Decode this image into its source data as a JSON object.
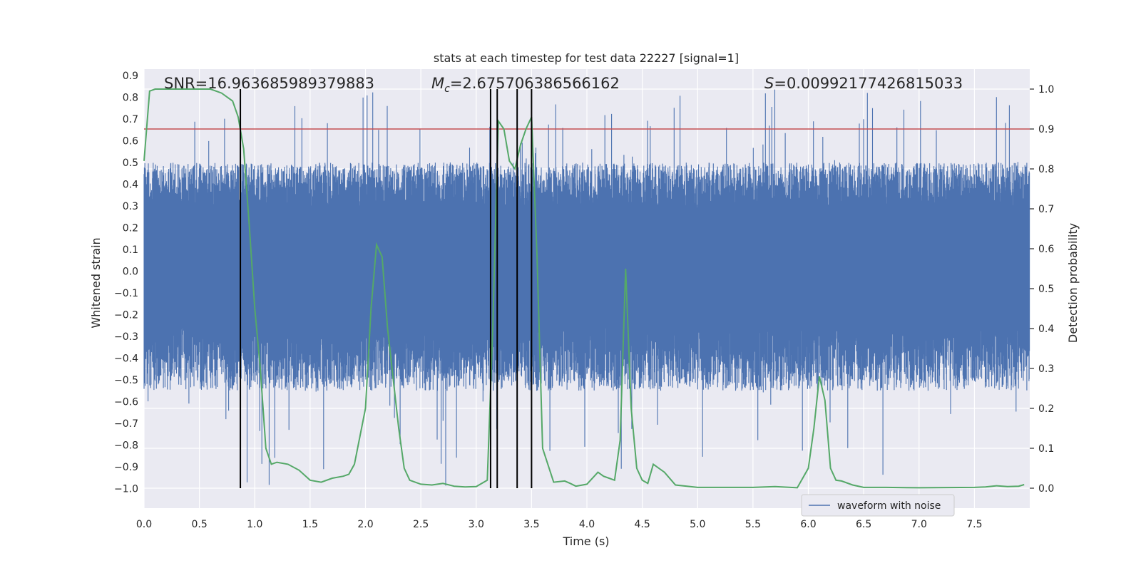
{
  "chart_data": {
    "type": "line",
    "title": "stats at each timestep for test data 22227 [signal=1]",
    "xlabel": "Time (s)",
    "ylabel_left": "Whitened strain",
    "ylabel_right": "Detection probability",
    "xlim": [
      0.0,
      8.0
    ],
    "ylim_left": [
      -1.09,
      0.93
    ],
    "ylim_right": [
      -0.05,
      1.05
    ],
    "x_ticks": [
      0.0,
      0.5,
      1.0,
      1.5,
      2.0,
      2.5,
      3.0,
      3.5,
      4.0,
      4.5,
      5.0,
      5.5,
      6.0,
      6.5,
      7.0,
      7.5
    ],
    "x_tick_labels": [
      "0.0",
      "0.5",
      "1.0",
      "1.5",
      "2.0",
      "2.5",
      "3.0",
      "3.5",
      "4.0",
      "4.5",
      "5.0",
      "5.5",
      "6.0",
      "6.5",
      "7.0",
      "7.5"
    ],
    "y_left_ticks": [
      0.9,
      0.8,
      0.7,
      0.6,
      0.5,
      0.4,
      0.3,
      0.2,
      0.1,
      0.0,
      -0.1,
      -0.2,
      -0.3,
      -0.4,
      -0.5,
      -0.6,
      -0.7,
      -0.8,
      -0.9,
      -1.0
    ],
    "y_left_tick_labels": [
      "0.9",
      "0.8",
      "0.7",
      "0.6",
      "0.5",
      "0.4",
      "0.3",
      "0.2",
      "0.1",
      "0.0",
      "−0.1",
      "−0.2",
      "−0.3",
      "−0.4",
      "−0.5",
      "−0.6",
      "−0.7",
      "−0.8",
      "−0.9",
      "−1.0"
    ],
    "y_right_ticks": [
      1.0,
      0.9,
      0.8,
      0.7,
      0.6,
      0.5,
      0.4,
      0.3,
      0.2,
      0.1,
      0.0
    ],
    "y_right_tick_labels": [
      "1.0",
      "0.9",
      "0.8",
      "0.7",
      "0.6",
      "0.5",
      "0.4",
      "0.3",
      "0.2",
      "0.1",
      "0.0"
    ],
    "grid": true,
    "legend_position": "lower-right",
    "annotations": {
      "snr": "SNR=16.963685989379883",
      "mc_symbol": "M",
      "mc_subscript": "c",
      "mc_value": "=2.675706386566162",
      "s_symbol": "S",
      "s_value": "=0.00992177426815033"
    },
    "threshold": {
      "value": 0.9,
      "axis": "right"
    },
    "vertical_markers": [
      0.87,
      3.13,
      3.19,
      3.37,
      3.5
    ],
    "series": [
      {
        "name": "waveform with noise",
        "axis": "left",
        "style": "dense-noise",
        "band_low": -0.26,
        "band_high": 0.29,
        "typical_min": -0.55,
        "typical_max": 0.5,
        "extreme_min": -1.0,
        "extreme_max": 0.84
      },
      {
        "name": "",
        "axis": "right",
        "x": [
          0.0,
          0.05,
          0.1,
          0.2,
          0.3,
          0.4,
          0.5,
          0.6,
          0.7,
          0.8,
          0.85,
          0.9,
          0.95,
          1.0,
          1.05,
          1.1,
          1.15,
          1.2,
          1.3,
          1.4,
          1.5,
          1.6,
          1.7,
          1.8,
          1.85,
          1.9,
          2.0,
          2.05,
          2.1,
          2.15,
          2.2,
          2.3,
          2.35,
          2.4,
          2.5,
          2.6,
          2.7,
          2.8,
          2.9,
          3.0,
          3.1,
          3.15,
          3.2,
          3.25,
          3.3,
          3.35,
          3.4,
          3.45,
          3.5,
          3.55,
          3.6,
          3.7,
          3.8,
          3.85,
          3.9,
          4.0,
          4.1,
          4.15,
          4.2,
          4.25,
          4.3,
          4.35,
          4.4,
          4.45,
          4.5,
          4.55,
          4.6,
          4.65,
          4.7,
          4.8,
          5.0,
          5.5,
          5.7,
          5.9,
          6.0,
          6.05,
          6.1,
          6.15,
          6.2,
          6.25,
          6.3,
          6.4,
          6.5,
          6.7,
          7.0,
          7.5,
          7.6,
          7.7,
          7.8,
          7.9,
          7.95
        ],
        "y": [
          0.82,
          0.995,
          1.0,
          1.0,
          1.0,
          1.0,
          1.0,
          1.0,
          0.99,
          0.97,
          0.93,
          0.85,
          0.66,
          0.45,
          0.3,
          0.1,
          0.06,
          0.065,
          0.06,
          0.045,
          0.02,
          0.015,
          0.025,
          0.03,
          0.035,
          0.06,
          0.2,
          0.45,
          0.61,
          0.58,
          0.4,
          0.15,
          0.05,
          0.02,
          0.01,
          0.008,
          0.012,
          0.005,
          0.003,
          0.004,
          0.02,
          0.4,
          0.92,
          0.9,
          0.82,
          0.8,
          0.86,
          0.9,
          0.93,
          0.58,
          0.1,
          0.015,
          0.018,
          0.012,
          0.005,
          0.01,
          0.04,
          0.03,
          0.025,
          0.02,
          0.12,
          0.55,
          0.2,
          0.05,
          0.02,
          0.012,
          0.06,
          0.05,
          0.04,
          0.008,
          0.002,
          0.002,
          0.004,
          0.001,
          0.05,
          0.15,
          0.28,
          0.22,
          0.05,
          0.02,
          0.018,
          0.008,
          0.002,
          0.002,
          0.001,
          0.002,
          0.003,
          0.006,
          0.004,
          0.005,
          0.009
        ]
      }
    ]
  },
  "colors": {
    "waveform": "#4c72b0",
    "probability": "#55a868",
    "threshold": "#c44e52",
    "markers": "#000000",
    "plot_background": "#eaeaf2",
    "grid": "#ffffff"
  }
}
